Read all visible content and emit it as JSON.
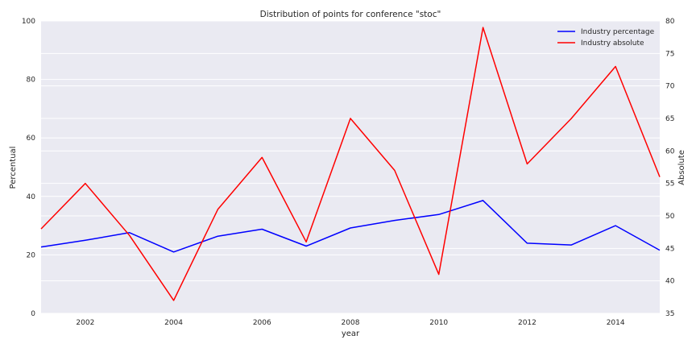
{
  "chart_data": {
    "type": "line",
    "title": "Distribution of points for conference \"stoc\"",
    "xlabel": "year",
    "ylabel_left": "Percentual",
    "ylabel_right": "Absolute",
    "x": [
      2001,
      2002,
      2003,
      2004,
      2005,
      2006,
      2007,
      2008,
      2009,
      2010,
      2011,
      2012,
      2013,
      2014,
      2015
    ],
    "xlim": [
      2001,
      2015
    ],
    "x_ticks": [
      "2002",
      "2004",
      "2006",
      "2008",
      "2010",
      "2012",
      "2014"
    ],
    "y_left_lim": [
      0,
      100
    ],
    "y_left_ticks": [
      "0",
      "20",
      "40",
      "60",
      "80",
      "100"
    ],
    "y_right_lim": [
      35,
      80
    ],
    "y_right_ticks": [
      "35",
      "40",
      "45",
      "50",
      "55",
      "60",
      "65",
      "70",
      "75",
      "80"
    ],
    "grid": true,
    "legend_position": "top-right",
    "series": [
      {
        "name": "Industry percentage",
        "axis": "left",
        "color": "#0000ff",
        "values": [
          22.7,
          25.0,
          27.6,
          21.0,
          26.4,
          28.8,
          23.0,
          29.2,
          31.8,
          33.8,
          38.6,
          24.0,
          23.4,
          30.0,
          21.6
        ]
      },
      {
        "name": "Industry absolute",
        "axis": "right",
        "color": "#ff0000",
        "values": [
          48,
          55,
          47,
          37,
          51,
          59,
          46,
          65,
          57,
          41,
          79,
          58,
          65,
          73,
          56
        ]
      }
    ]
  }
}
